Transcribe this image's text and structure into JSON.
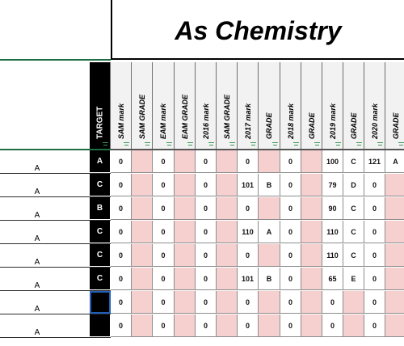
{
  "sheet": {
    "title": "As Chemistry",
    "columns": [
      "TARGET",
      "SAM mark",
      "SAM GRADE",
      "EAM mark",
      "EAM GRADE",
      "2016 mark",
      "SAM GRADE",
      "2017 mark",
      "GRADE",
      "2018 mark",
      "GRADE",
      "2019 mark",
      "GRADE",
      "2020 mark",
      "GRADE"
    ],
    "left_values": [
      "A",
      "A",
      "A",
      "A",
      "A",
      "A",
      "A",
      "A"
    ],
    "rows": [
      [
        "A",
        "0",
        "",
        "0",
        "",
        "0",
        "",
        "0",
        "",
        "0",
        "",
        "100",
        "C",
        "121",
        "A"
      ],
      [
        "C",
        "0",
        "",
        "0",
        "",
        "0",
        "",
        "101",
        "B",
        "0",
        "",
        "79",
        "D",
        "0",
        ""
      ],
      [
        "B",
        "0",
        "",
        "0",
        "",
        "0",
        "",
        "0",
        "",
        "0",
        "",
        "90",
        "C",
        "0",
        ""
      ],
      [
        "C",
        "0",
        "",
        "0",
        "",
        "0",
        "",
        "110",
        "A",
        "0",
        "",
        "110",
        "C",
        "0",
        ""
      ],
      [
        "C",
        "0",
        "",
        "0",
        "",
        "0",
        "",
        "0",
        "",
        "0",
        "",
        "110",
        "C",
        "0",
        ""
      ],
      [
        "C",
        "0",
        "",
        "0",
        "",
        "0",
        "",
        "101",
        "B",
        "0",
        "",
        "65",
        "E",
        "0",
        ""
      ],
      [
        "",
        "0",
        "",
        "0",
        "",
        "0",
        "",
        "0",
        "",
        "0",
        "",
        "0",
        "",
        "0",
        ""
      ],
      [
        "",
        "0",
        "",
        "0",
        "",
        "0",
        "",
        "0",
        "",
        "0",
        "",
        "0",
        "",
        "0",
        ""
      ]
    ]
  },
  "colors": {
    "target_bg": "#000000",
    "pink_fill": "#f6cfcf",
    "header_bg": "#f2f2f2",
    "green_rule": "#1f6e43",
    "selection": "#1f5fb8"
  }
}
